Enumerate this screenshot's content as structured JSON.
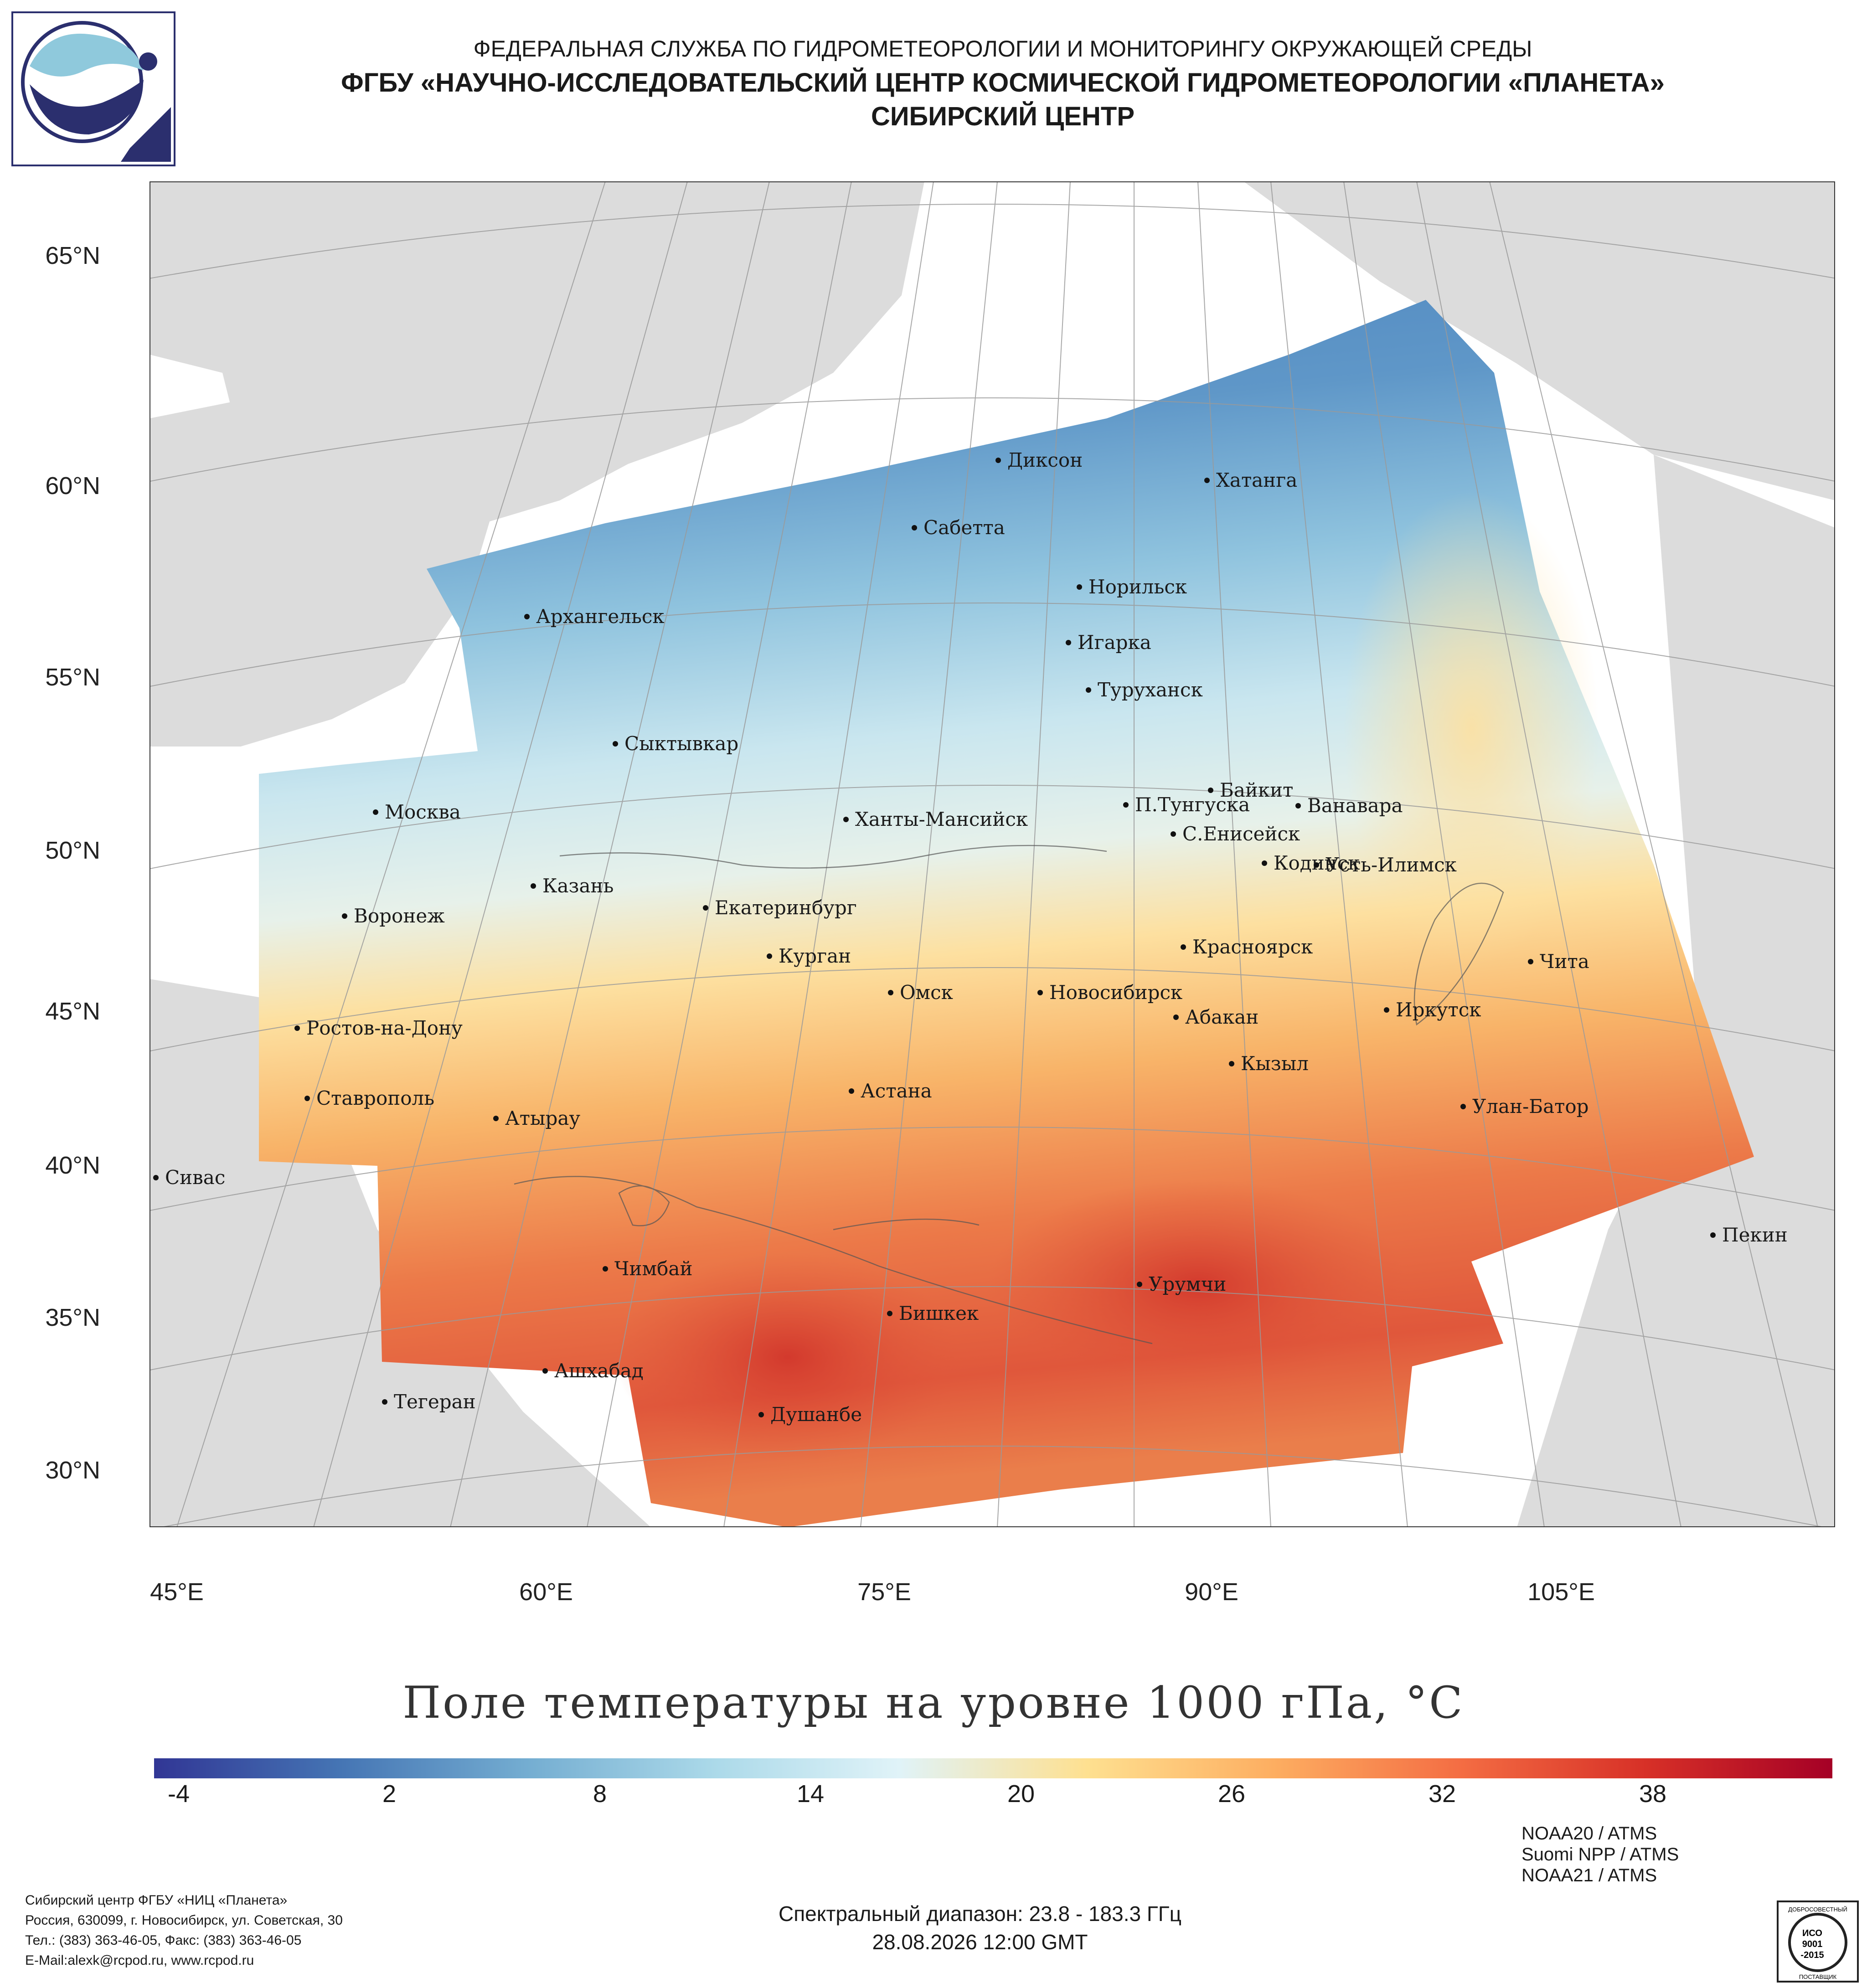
{
  "header": {
    "line1": "ФЕДЕРАЛЬНАЯ СЛУЖБА ПО ГИДРОМЕТЕОРОЛОГИИ И МОНИТОРИНГУ ОКРУЖАЮЩЕЙ СРЕДЫ",
    "line2": "ФГБУ «НАУЧНО-ИССЛЕДОВАТЕЛЬСКИЙ ЦЕНТР КОСМИЧЕСКОЙ ГИДРОМЕТЕОРОЛОГИИ «ПЛАНЕТА»",
    "line3": "СИБИРСКИЙ ЦЕНТР"
  },
  "map": {
    "lat_labels": [
      "65°N",
      "60°N",
      "55°N",
      "50°N",
      "45°N",
      "40°N",
      "35°N",
      "30°N"
    ],
    "lon_labels": [
      "45°E",
      "60°E",
      "75°E",
      "90°E",
      "105°E"
    ],
    "cities": [
      {
        "name": "Диксон"
      },
      {
        "name": "Хатанга"
      },
      {
        "name": "Сабетта"
      },
      {
        "name": "Норильск"
      },
      {
        "name": "Архангельск"
      },
      {
        "name": "Игарка"
      },
      {
        "name": "Туруханск"
      },
      {
        "name": "Сыктывкар"
      },
      {
        "name": "Байкит"
      },
      {
        "name": "Ванавара"
      },
      {
        "name": "П.Тунгуска"
      },
      {
        "name": "Москва"
      },
      {
        "name": "Ханты-Мансийск"
      },
      {
        "name": "С.Енисейск"
      },
      {
        "name": "Кодинск"
      },
      {
        "name": "Усть-Илимск"
      },
      {
        "name": "Казань"
      },
      {
        "name": "Екатеринбург"
      },
      {
        "name": "Воронеж"
      },
      {
        "name": "Красноярск"
      },
      {
        "name": "Курган"
      },
      {
        "name": "Чита"
      },
      {
        "name": "Омск"
      },
      {
        "name": "Новосибирск"
      },
      {
        "name": "Иркутск"
      },
      {
        "name": "Ростов-на-Дону"
      },
      {
        "name": "Абакан"
      },
      {
        "name": "Кызыл"
      },
      {
        "name": "Ставрополь"
      },
      {
        "name": "Астана"
      },
      {
        "name": "Улан-Батор"
      },
      {
        "name": "Атырау"
      },
      {
        "name": "Сивас"
      },
      {
        "name": "Пекин"
      },
      {
        "name": "Чимбай"
      },
      {
        "name": "Урумчи"
      },
      {
        "name": "Бишкек"
      },
      {
        "name": "Ашхабад"
      },
      {
        "name": "Тегеран"
      },
      {
        "name": "Душанбе"
      }
    ]
  },
  "colorbar": {
    "title": "Поле температуры на уровне 1000 гПа, °C",
    "ticks": [
      "-4",
      "2",
      "8",
      "14",
      "20",
      "26",
      "32",
      "38"
    ],
    "colors": [
      "#313695",
      "#4575b4",
      "#74add1",
      "#abd9e9",
      "#e0f3f8",
      "#fee090",
      "#fdae61",
      "#f46d43",
      "#d73027",
      "#a50026"
    ]
  },
  "footer": {
    "org_lines": [
      "Сибирский центр ФГБУ «НИЦ «Планета»",
      "Россия, 630099, г. Новосибирск, ул. Советская, 30",
      "Тел.: (383) 363-46-05, Факс: (383) 363-46-05",
      "E-Mail:alexk@rcpod.ru, www.rcpod.ru"
    ],
    "spectral": "Спектральный диапазон: 23.8 - 183.3 ГГц",
    "datetime": "28.08.2026 12:00 GMT",
    "sensors": [
      "NOAA20 / ATMS",
      "Suomi NPP / ATMS",
      "NOAA21 / ATMS"
    ],
    "cert_text": [
      "ДОБРОСОВЕСТНЫЙ",
      "ИСО",
      "9001",
      "-2015",
      "ПОСТАВЩИК"
    ]
  }
}
